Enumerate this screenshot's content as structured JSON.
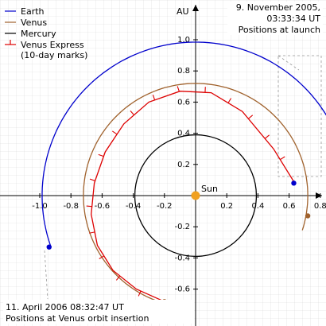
{
  "legend": {
    "items": [
      {
        "label": "Earth",
        "color": "#0000cc",
        "marker": "line"
      },
      {
        "label": "Venus",
        "color": "#a0622d",
        "marker": "line"
      },
      {
        "label": "Mercury",
        "color": "#000000",
        "marker": "line"
      },
      {
        "label": "Venus Express",
        "color": "#dd0000",
        "marker": "tick"
      }
    ],
    "note": "(10-day marks)"
  },
  "axes": {
    "x_label": "",
    "y_label": "AU",
    "x_ticks": [
      "-1.0",
      "-0.8",
      "-0.6",
      "-0.4",
      "-0.2",
      "0.2",
      "0.4",
      "0.6",
      "0.8"
    ],
    "y_ticks": [
      "1.0",
      "0.8",
      "0.6",
      "0.4",
      "0.2",
      "-0.2",
      "-0.4",
      "-0.6"
    ],
    "x_ticks_values": [
      -1.0,
      -0.8,
      -0.6,
      -0.4,
      -0.2,
      0.2,
      0.4,
      0.6,
      0.8
    ],
    "y_ticks_values": [
      1.0,
      0.8,
      0.6,
      0.4,
      0.2,
      -0.2,
      -0.4,
      -0.6
    ],
    "xlim": [
      -1.05,
      0.9
    ],
    "ylim": [
      -0.75,
      1.1
    ],
    "grid": true
  },
  "sun": {
    "label": "Sun",
    "color": "#f0a020"
  },
  "annotations": {
    "launch_line1": "9. November 2005,",
    "launch_line2": "03:33:34 UT",
    "launch_line3": "Positions at launch",
    "insertion_line1": "11. April 2006 08:32:47 UT",
    "insertion_line2": "Positions at Venus orbit insertion"
  },
  "colors": {
    "earth": "#0000cc",
    "venus": "#a0622d",
    "mercury": "#000000",
    "venus_express": "#dd0000",
    "sun": "#f0a020"
  },
  "chart_data": {
    "type": "scatter",
    "title": "",
    "xlabel": "",
    "ylabel": "AU",
    "series": [
      {
        "name": "Earth",
        "orbit_radius_au": 0.985,
        "start_angle_deg": 7,
        "end_angle_deg": 199,
        "launch_point": [
          0.63,
          0.08
        ],
        "insertion_point": [
          -0.94,
          -0.33
        ]
      },
      {
        "name": "Venus",
        "orbit_radius_au": 0.72,
        "start_angle_deg": -18,
        "end_angle_deg": 255,
        "launch_point": [
          0.72,
          -0.13
        ],
        "insertion_point": [
          -0.2,
          -0.68
        ]
      },
      {
        "name": "Mercury",
        "orbit_radius_au": 0.39,
        "full_circle": true
      },
      {
        "name": "Venus Express",
        "path_points": [
          [
            0.63,
            0.09
          ],
          [
            0.5,
            0.3
          ],
          [
            0.3,
            0.54
          ],
          [
            0.1,
            0.66
          ],
          [
            -0.1,
            0.67
          ],
          [
            -0.3,
            0.6
          ],
          [
            -0.46,
            0.46
          ],
          [
            -0.58,
            0.28
          ],
          [
            -0.65,
            0.08
          ],
          [
            -0.67,
            -0.12
          ],
          [
            -0.63,
            -0.32
          ],
          [
            -0.53,
            -0.48
          ],
          [
            -0.38,
            -0.6
          ],
          [
            -0.2,
            -0.68
          ]
        ],
        "tick_count": 16
      }
    ]
  }
}
